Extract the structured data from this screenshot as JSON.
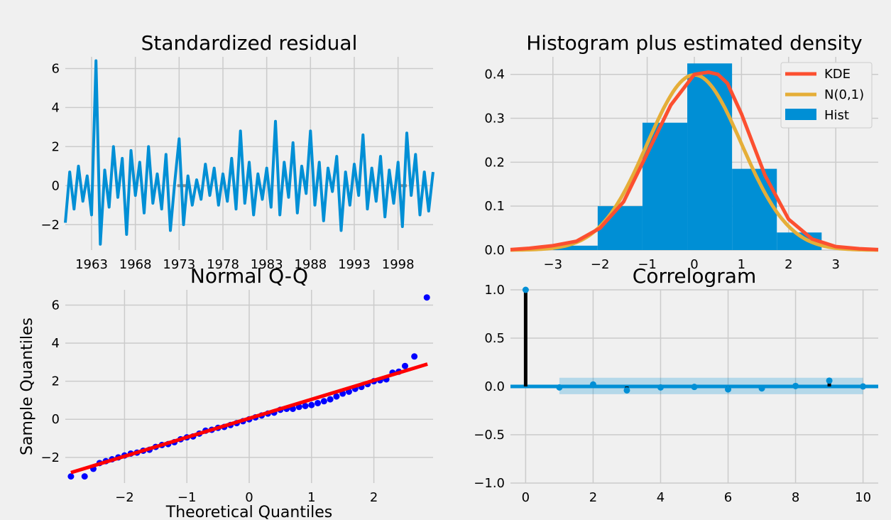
{
  "chart_data": [
    {
      "type": "line",
      "title": "Standardized residual",
      "xlabel": "",
      "ylabel": "",
      "x_ticks": [
        "1963",
        "1968",
        "1973",
        "1978",
        "1983",
        "1988",
        "1993",
        "1998"
      ],
      "y_ticks": [
        "−2",
        "0",
        "2",
        "4",
        "6"
      ],
      "xlim": [
        1960.0,
        2002.0
      ],
      "ylim": [
        -3.3,
        6.6
      ],
      "grid": true,
      "color": "#008fd5",
      "series": [
        {
          "x": [
            1960.0,
            1960.5,
            1961.0,
            1961.5,
            1962.0,
            1962.5,
            1963.0,
            1963.5,
            1964.0,
            1964.5,
            1965.0,
            1965.5,
            1966.0,
            1966.5,
            1967.0,
            1967.5,
            1968.0,
            1968.5,
            1969.0,
            1969.5,
            1970.0,
            1970.5,
            1971.0,
            1971.5,
            1972.0,
            1972.5,
            1973.0,
            1973.5,
            1974.0,
            1974.5,
            1975.0,
            1975.5,
            1976.0,
            1976.5,
            1977.0,
            1977.5,
            1978.0,
            1978.5,
            1979.0,
            1979.5,
            1980.0,
            1980.5,
            1981.0,
            1981.5,
            1982.0,
            1982.5,
            1983.0,
            1983.5,
            1984.0,
            1984.5,
            1985.0,
            1985.5,
            1986.0,
            1986.5,
            1987.0,
            1987.5,
            1988.0,
            1988.5,
            1989.0,
            1989.5,
            1990.0,
            1990.5,
            1991.0,
            1991.5,
            1992.0,
            1992.5,
            1993.0,
            1993.5,
            1994.0,
            1994.5,
            1995.0,
            1995.5,
            1996.0,
            1996.5,
            1997.0,
            1997.5,
            1998.0,
            1998.5,
            1999.0,
            1999.5,
            2000.0,
            2000.5,
            2001.0,
            2001.5,
            2002.0
          ],
          "y": [
            -1.9,
            0.7,
            -1.2,
            1.0,
            -0.8,
            0.5,
            -1.5,
            6.4,
            -3.0,
            0.8,
            -1.1,
            2.0,
            -0.6,
            1.4,
            -2.5,
            1.8,
            -0.5,
            1.2,
            -1.4,
            2.0,
            -0.9,
            0.6,
            -1.2,
            1.6,
            -2.3,
            0.2,
            2.4,
            -2.0,
            0.5,
            -1.0,
            0.3,
            -0.7,
            1.1,
            -0.5,
            0.9,
            -1.0,
            0.6,
            -0.8,
            1.4,
            -1.2,
            2.8,
            -0.9,
            1.2,
            -1.5,
            0.6,
            -0.7,
            0.9,
            -1.1,
            3.3,
            -1.5,
            1.2,
            -0.6,
            2.2,
            -1.4,
            1.0,
            -0.4,
            2.8,
            -1.0,
            1.2,
            -1.8,
            0.9,
            -0.3,
            1.5,
            -2.3,
            0.7,
            -1.0,
            1.1,
            -0.5,
            2.6,
            -1.2,
            0.9,
            -0.8,
            1.5,
            -1.6,
            0.8,
            -0.9,
            1.2,
            -2.1,
            2.7,
            -0.5,
            1.6,
            -1.5,
            0.7,
            -1.3,
            0.7
          ]
        }
      ]
    },
    {
      "type": "bar",
      "title": "Histogram plus estimated density",
      "x_ticks": [
        "−3",
        "−2",
        "−1",
        "0",
        "1",
        "2",
        "3"
      ],
      "y_ticks": [
        "0.0",
        "0.1",
        "0.2",
        "0.3",
        "0.4"
      ],
      "xlim": [
        -3.9,
        3.9
      ],
      "ylim": [
        0,
        0.44
      ],
      "grid": true,
      "legend_position": "top-right",
      "legend": [
        "KDE",
        "N(0,1)",
        "Hist"
      ],
      "bins": [
        {
          "x0": -3.0,
          "x1": -2.05,
          "h": 0.01
        },
        {
          "x0": -2.05,
          "x1": -1.1,
          "h": 0.1
        },
        {
          "x0": -1.1,
          "x1": -0.15,
          "h": 0.29
        },
        {
          "x0": -0.15,
          "x1": 0.8,
          "h": 0.425
        },
        {
          "x0": 0.8,
          "x1": 1.75,
          "h": 0.185
        },
        {
          "x0": 1.75,
          "x1": 2.7,
          "h": 0.04
        }
      ],
      "kde": {
        "x": [
          -3.9,
          -3.5,
          -3.0,
          -2.5,
          -2.0,
          -1.5,
          -1.0,
          -0.5,
          0.0,
          0.3,
          0.5,
          0.7,
          1.0,
          1.5,
          2.0,
          2.5,
          3.0,
          3.5,
          3.9
        ],
        "y": [
          0.001,
          0.004,
          0.01,
          0.02,
          0.05,
          0.11,
          0.22,
          0.33,
          0.4,
          0.405,
          0.4,
          0.38,
          0.31,
          0.17,
          0.07,
          0.025,
          0.008,
          0.003,
          0.001
        ]
      },
      "colors": {
        "hist": "#008fd5",
        "kde": "#fc4f30",
        "normal": "#e5ae38"
      }
    },
    {
      "type": "scatter",
      "title": "Normal Q-Q",
      "xlabel": "Theoretical Quantiles",
      "ylabel": "Sample Quantiles",
      "x_ticks": [
        "−2",
        "−1",
        "0",
        "1",
        "2"
      ],
      "y_ticks": [
        "−2",
        "0",
        "2",
        "4",
        "6"
      ],
      "xlim": [
        -2.95,
        2.95
      ],
      "ylim": [
        -3.35,
        6.8
      ],
      "grid": true,
      "points": {
        "x": [
          -2.86,
          -2.64,
          -2.5,
          -2.4,
          -2.3,
          -2.2,
          -2.1,
          -2.0,
          -1.9,
          -1.8,
          -1.7,
          -1.6,
          -1.5,
          -1.4,
          -1.3,
          -1.2,
          -1.1,
          -1.0,
          -0.9,
          -0.8,
          -0.7,
          -0.6,
          -0.5,
          -0.4,
          -0.3,
          -0.2,
          -0.1,
          0.0,
          0.1,
          0.2,
          0.3,
          0.4,
          0.5,
          0.6,
          0.7,
          0.8,
          0.9,
          1.0,
          1.1,
          1.2,
          1.3,
          1.4,
          1.5,
          1.6,
          1.7,
          1.8,
          1.9,
          2.0,
          2.1,
          2.2,
          2.3,
          2.4,
          2.5,
          2.65,
          2.85
        ],
        "y": [
          -3.0,
          -3.0,
          -2.6,
          -2.3,
          -2.2,
          -2.1,
          -2.0,
          -1.9,
          -1.8,
          -1.75,
          -1.65,
          -1.6,
          -1.45,
          -1.35,
          -1.3,
          -1.2,
          -1.05,
          -0.95,
          -0.9,
          -0.75,
          -0.6,
          -0.55,
          -0.45,
          -0.4,
          -0.3,
          -0.2,
          -0.1,
          0.0,
          0.1,
          0.2,
          0.3,
          0.35,
          0.5,
          0.55,
          0.55,
          0.65,
          0.7,
          0.75,
          0.85,
          0.95,
          1.05,
          1.2,
          1.35,
          1.45,
          1.6,
          1.7,
          1.85,
          2.0,
          2.05,
          2.1,
          2.45,
          2.5,
          2.8,
          3.3,
          6.4
        ]
      },
      "fit_line": {
        "x": [
          -2.86,
          2.86
        ],
        "y": [
          -2.8,
          2.9
        ]
      },
      "colors": {
        "points": "#0000ff",
        "line": "#ff0000"
      }
    },
    {
      "type": "scatter",
      "title": "Correlogram",
      "x_ticks": [
        "0",
        "2",
        "4",
        "6",
        "8",
        "10"
      ],
      "y_ticks": [
        "−1.0",
        "−0.5",
        "0.0",
        "0.5",
        "1.0"
      ],
      "xlim": [
        -0.45,
        10.45
      ],
      "ylim": [
        -1.0,
        1.0
      ],
      "grid": true,
      "lags": [
        0,
        1,
        2,
        3,
        4,
        5,
        6,
        7,
        8,
        9,
        10
      ],
      "acf": [
        1.0,
        -0.01,
        0.02,
        -0.04,
        -0.01,
        -0.005,
        -0.03,
        -0.02,
        0.005,
        0.06,
        0.0
      ],
      "conf_band": {
        "x": [
          1,
          10
        ],
        "lower": -0.08,
        "upper": 0.09
      },
      "colors": {
        "stem": "#000000",
        "point": "#008fd5",
        "band": "#008fd5"
      }
    }
  ]
}
